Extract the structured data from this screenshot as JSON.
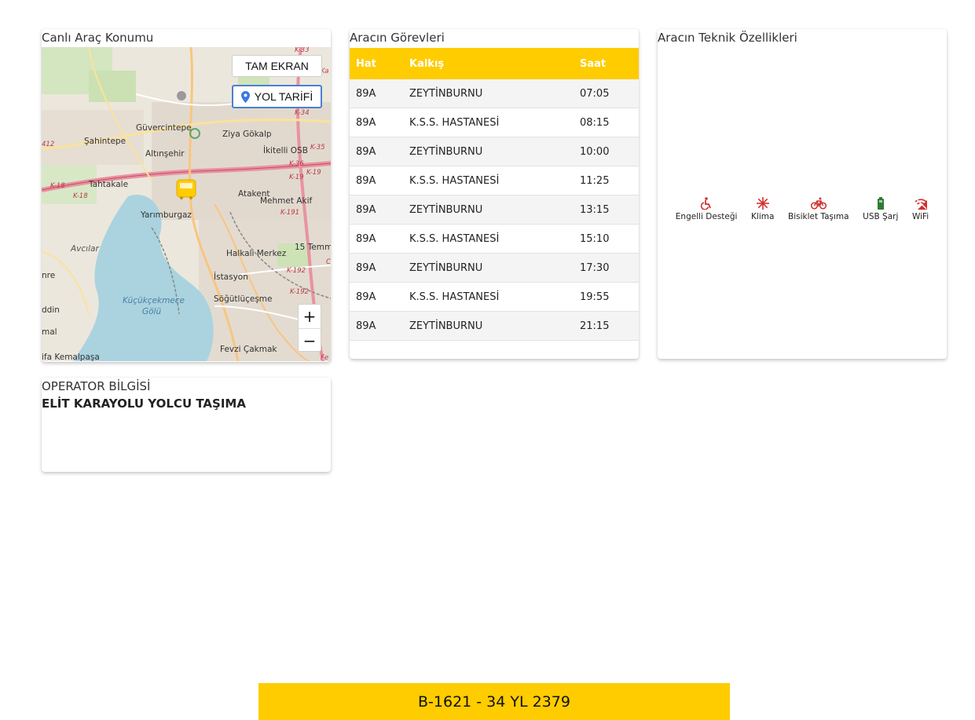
{
  "map": {
    "title": "Canlı Araç Konumu",
    "fullscreen_label": "TAM EKRAN",
    "directions_label": "YOL TARİFİ",
    "zoom_in": "+",
    "zoom_out": "−",
    "places": [
      "Güvercintepe",
      "Şahintepe",
      "Altınşehir",
      "Ziya Gökalp",
      "İkitelli OSB",
      "Tahtakale",
      "Atakent",
      "Mehmet Akif",
      "Yarımburgaz",
      "Avcılar",
      "Halkalı Merkez",
      "15 Temm",
      "İstasyon",
      "Küçükçekmece",
      "Gölü",
      "Söğütlüçeşme",
      "Fevzi Çakmak",
      "ifa Kemalpaşa",
      "ddin",
      "mal",
      "nre"
    ],
    "roads": [
      "K-33",
      "K-34",
      "K-35",
      "K-36",
      "K-19",
      "K-19",
      "K-18",
      "K-18",
      "K-191",
      "K-192",
      "K-192",
      "412",
      "Ka",
      "Fe",
      "C"
    ]
  },
  "tasks": {
    "title": "Aracın Görevleri",
    "headers": [
      "Hat",
      "Kalkış",
      "Saat"
    ],
    "rows": [
      [
        "89A",
        "ZEYTİNBURNU",
        "07:05"
      ],
      [
        "89A",
        "K.S.S. HASTANESİ",
        "08:15"
      ],
      [
        "89A",
        "ZEYTİNBURNU",
        "10:00"
      ],
      [
        "89A",
        "K.S.S. HASTANESİ",
        "11:25"
      ],
      [
        "89A",
        "ZEYTİNBURNU",
        "13:15"
      ],
      [
        "89A",
        "K.S.S. HASTANESİ",
        "15:10"
      ],
      [
        "89A",
        "ZEYTİNBURNU",
        "17:30"
      ],
      [
        "89A",
        "K.S.S. HASTANESİ",
        "19:55"
      ],
      [
        "89A",
        "ZEYTİNBURNU",
        "21:15"
      ]
    ]
  },
  "features": {
    "title": "Aracın Teknik Özellikleri",
    "items": [
      {
        "label": "Engelli Desteği",
        "icon": "wheelchair-icon",
        "color": "#d32f2f"
      },
      {
        "label": "Klima",
        "icon": "snowflake-icon",
        "color": "#d32f2f"
      },
      {
        "label": "Bisiklet Taşıma",
        "icon": "bicycle-icon",
        "color": "#d32f2f"
      },
      {
        "label": "USB Şarj",
        "icon": "battery-icon",
        "color": "#2e7d32"
      },
      {
        "label": "WiFi",
        "icon": "wifi-off-icon",
        "color": "#d32f2f"
      }
    ]
  },
  "operator": {
    "title": "OPERATOR BİLGİSİ",
    "name": "ELİT KARAYOLU YOLCU TAŞIMA"
  },
  "plate": "B-1621 - 34 YL 2379",
  "colors": {
    "accent": "#ffcc00",
    "danger": "#d32f2f",
    "success": "#2e7d32"
  }
}
